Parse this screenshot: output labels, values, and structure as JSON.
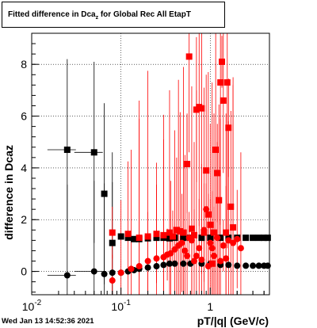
{
  "title": {
    "prefix": "Fitted difference in Dca",
    "sub": "z",
    "suffix": " for Global Rec All EtapT"
  },
  "timestamp": "Wed Jan 13 14:52:36 2021",
  "colors": {
    "series1": "#000000",
    "series2": "#ff0000",
    "grid": "#000000",
    "frame": "#000000"
  },
  "chart_data": {
    "type": "scatter",
    "title": "Fitted difference in Dcaz for Global Rec All EtapT",
    "xlabel": "pT/|q| (GeV/c)",
    "ylabel": "difference in Dcaz",
    "xscale": "log",
    "xlim": [
      0.01,
      4.6
    ],
    "ylim": [
      -0.9,
      9.2
    ],
    "grid": true,
    "x_ticks": [
      {
        "v": 0.01,
        "base": "10",
        "exp": "-2"
      },
      {
        "v": 0.1,
        "base": "10",
        "exp": "-1"
      },
      {
        "v": 1,
        "base": "1",
        "exp": ""
      }
    ],
    "y_ticks": [
      0,
      2,
      4,
      6,
      8
    ],
    "series": [
      {
        "marker": "square",
        "color": "#000000",
        "x": [
          0.025,
          0.05,
          0.065,
          0.08,
          0.1,
          0.12,
          0.14,
          0.16,
          0.2,
          0.25,
          0.3,
          0.35,
          0.4,
          0.5,
          0.6,
          0.8,
          1.0,
          1.3,
          1.6,
          2.0,
          2.5,
          3.0,
          3.5,
          4.0,
          4.4
        ],
        "y": [
          4.7,
          4.6,
          3.0,
          1.1,
          1.35,
          1.3,
          1.25,
          1.25,
          1.28,
          1.3,
          1.3,
          1.28,
          1.3,
          1.3,
          1.3,
          1.3,
          1.3,
          1.3,
          1.3,
          1.3,
          1.3,
          1.3,
          1.3,
          1.3,
          1.3
        ]
      },
      {
        "marker": "circle",
        "color": "#000000",
        "x": [
          0.025,
          0.05,
          0.065,
          0.08,
          0.1,
          0.12,
          0.14,
          0.16,
          0.2,
          0.25,
          0.3,
          0.35,
          0.4,
          0.5,
          0.6,
          0.8,
          1.0,
          1.3,
          1.6,
          2.0,
          2.5,
          3.0,
          3.5,
          4.0,
          4.4
        ],
        "y": [
          -0.15,
          0.0,
          -0.1,
          -0.05,
          -0.05,
          0.0,
          0.05,
          0.1,
          0.15,
          0.2,
          0.25,
          0.3,
          0.3,
          0.3,
          0.3,
          0.3,
          0.3,
          0.25,
          0.25,
          0.22,
          0.22,
          0.22,
          0.22,
          0.22,
          0.22
        ]
      },
      {
        "marker": "square",
        "color": "#ff0000",
        "x": [
          0.08,
          0.12,
          0.16,
          0.2,
          0.25,
          0.3,
          0.35,
          0.38,
          0.42,
          0.46,
          0.5,
          0.55,
          0.58,
          0.62,
          0.66,
          0.7,
          0.75,
          0.8,
          0.85,
          0.9,
          0.95,
          1.0,
          1.05,
          1.1,
          1.15,
          1.2,
          1.25,
          1.3,
          1.35,
          1.4,
          1.5,
          1.55,
          1.6,
          1.7,
          1.8
        ],
        "y": [
          1.5,
          1.45,
          1.3,
          1.35,
          1.45,
          1.4,
          1.5,
          1.35,
          1.6,
          1.55,
          1.5,
          4.15,
          8.3,
          1.65,
          1.4,
          6.25,
          6.35,
          6.3,
          1.5,
          3.9,
          2.2,
          1.8,
          0.3,
          1.5,
          4.7,
          3.8,
          2.75,
          7.3,
          8.1,
          6.6,
          1.5,
          7.3,
          5.55,
          2.5,
          1.7
        ]
      },
      {
        "marker": "circle",
        "color": "#ff0000",
        "x": [
          0.08,
          0.1,
          0.13,
          0.16,
          0.2,
          0.25,
          0.3,
          0.33,
          0.36,
          0.4,
          0.44,
          0.48,
          0.52,
          0.55,
          0.58,
          0.62,
          0.66,
          0.7,
          0.75,
          0.8,
          0.85,
          0.9,
          0.95,
          1.0,
          1.05,
          1.1,
          1.2,
          1.3,
          1.4,
          1.5,
          1.6,
          1.8,
          2.0,
          2.2
        ],
        "y": [
          -0.35,
          -0.05,
          0.1,
          0.2,
          0.4,
          0.5,
          0.55,
          0.65,
          0.7,
          0.85,
          1.0,
          1.1,
          0.8,
          0.6,
          1.3,
          1.2,
          0.4,
          0.6,
          0.9,
          0.45,
          1.6,
          2.4,
          0.2,
          1.1,
          0.9,
          0.6,
          1.3,
          0.4,
          1.0,
          0.5,
          1.2,
          1.1,
          1.25,
          0.9
        ]
      }
    ]
  }
}
